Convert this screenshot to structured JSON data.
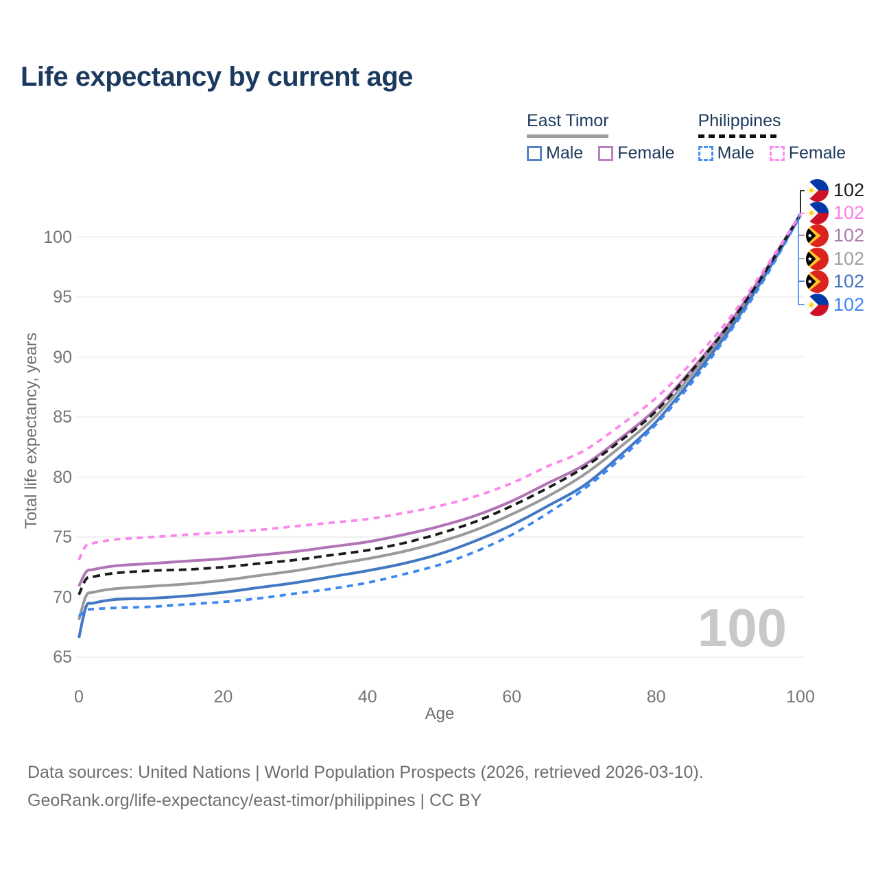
{
  "title": "Life expectancy by current age",
  "watermark": "100",
  "footer": {
    "line1": "Data sources: United Nations | World Population Prospects (2026, retrieved 2026-03-10).",
    "line2": "GeoRank.org/life-expectancy/east-timor/philippines | CC BY"
  },
  "legend": {
    "groups": [
      {
        "name": "East Timor",
        "underline_style": "solid",
        "underline_color": "#9e9e9e",
        "items": [
          {
            "label": "Male",
            "color": "#5585c8",
            "dashed": false
          },
          {
            "label": "Female",
            "color": "#bb80c0",
            "dashed": false
          }
        ]
      },
      {
        "name": "Philippines",
        "underline_style": "dashed",
        "underline_color": "#111111",
        "items": [
          {
            "label": "Male",
            "color": "#4a90f0",
            "dashed": true
          },
          {
            "label": "Female",
            "color": "#fb8df0",
            "dashed": true
          }
        ]
      }
    ]
  },
  "chart_data": {
    "type": "line",
    "title": "Life expectancy by current age",
    "xlabel": "Age",
    "ylabel": "Total life expectancy, years",
    "xlim": [
      0,
      100
    ],
    "ylim": [
      64.6,
      103.2
    ],
    "x_ticks": [
      0,
      20,
      40,
      60,
      80,
      100
    ],
    "y_ticks": [
      65,
      70,
      75,
      80,
      85,
      90,
      95,
      100
    ],
    "grid": "horizontal",
    "legend_position": "top-right",
    "ages": [
      0,
      1,
      2,
      5,
      10,
      15,
      20,
      25,
      30,
      35,
      40,
      45,
      50,
      55,
      60,
      65,
      70,
      75,
      80,
      85,
      90,
      95,
      100
    ],
    "series": [
      {
        "id": "et-all",
        "name": "East Timor — All",
        "color": "#9a9a9a",
        "dash": null,
        "width": 4,
        "values": [
          68.1,
          70.1,
          70.4,
          70.7,
          70.9,
          71.1,
          71.4,
          71.8,
          72.2,
          72.7,
          73.2,
          73.8,
          74.6,
          75.6,
          76.9,
          78.4,
          80.2,
          82.5,
          85.1,
          88.6,
          92.4,
          96.9,
          101.8
        ]
      },
      {
        "id": "et-male",
        "name": "East Timor — Male",
        "color": "#4277c2",
        "dash": null,
        "width": 4,
        "values": [
          66.6,
          69.2,
          69.5,
          69.8,
          69.9,
          70.1,
          70.4,
          70.8,
          71.2,
          71.7,
          72.2,
          72.8,
          73.6,
          74.7,
          76.0,
          77.6,
          79.3,
          81.8,
          84.6,
          88.2,
          92.1,
          96.7,
          101.8
        ]
      },
      {
        "id": "et-female",
        "name": "East Timor — Female",
        "color": "#b174b6",
        "dash": null,
        "width": 4,
        "values": [
          70.9,
          72.1,
          72.3,
          72.6,
          72.8,
          73.0,
          73.2,
          73.5,
          73.8,
          74.2,
          74.6,
          75.2,
          75.9,
          76.8,
          78.0,
          79.5,
          81.0,
          83.2,
          85.7,
          89.0,
          92.7,
          97.1,
          101.9
        ]
      },
      {
        "id": "ph-male",
        "name": "Philippines — Male",
        "color": "#3d87f0",
        "dash": "9 7.5",
        "width": 3.8,
        "values": [
          68.4,
          68.9,
          69.0,
          69.1,
          69.2,
          69.4,
          69.6,
          69.9,
          70.3,
          70.7,
          71.2,
          71.9,
          72.7,
          73.8,
          75.2,
          77.0,
          79.0,
          81.5,
          84.4,
          87.9,
          91.9,
          96.5,
          101.8
        ]
      },
      {
        "id": "ph-all",
        "name": "Philippines — All",
        "color": "#1a1a1a",
        "dash": "11 7",
        "width": 3.8,
        "values": [
          70.2,
          71.5,
          71.7,
          72.0,
          72.2,
          72.3,
          72.5,
          72.8,
          73.1,
          73.5,
          73.9,
          74.5,
          75.3,
          76.3,
          77.6,
          79.1,
          80.8,
          83.0,
          85.5,
          88.9,
          92.6,
          97.0,
          101.9
        ]
      },
      {
        "id": "ph-female",
        "name": "Philippines — Female",
        "color": "#fb87ea",
        "dash": "9 7.5",
        "width": 3.8,
        "values": [
          73.1,
          74.3,
          74.5,
          74.8,
          75.0,
          75.2,
          75.4,
          75.6,
          75.9,
          76.2,
          76.5,
          77.0,
          77.6,
          78.4,
          79.5,
          80.9,
          82.2,
          84.3,
          86.6,
          89.6,
          93.1,
          97.3,
          101.9
        ]
      }
    ],
    "end_labels": [
      {
        "flag": "philippines",
        "value": "102",
        "color": "#1a1a1a"
      },
      {
        "flag": "philippines",
        "value": "102",
        "color": "#fb7ee6"
      },
      {
        "flag": "east-timor",
        "value": "102",
        "color": "#b07ab0"
      },
      {
        "flag": "east-timor",
        "value": "102",
        "color": "#a0a0a0"
      },
      {
        "flag": "east-timor",
        "value": "102",
        "color": "#4673bd"
      },
      {
        "flag": "philippines",
        "value": "102",
        "color": "#3f87f5"
      }
    ]
  }
}
